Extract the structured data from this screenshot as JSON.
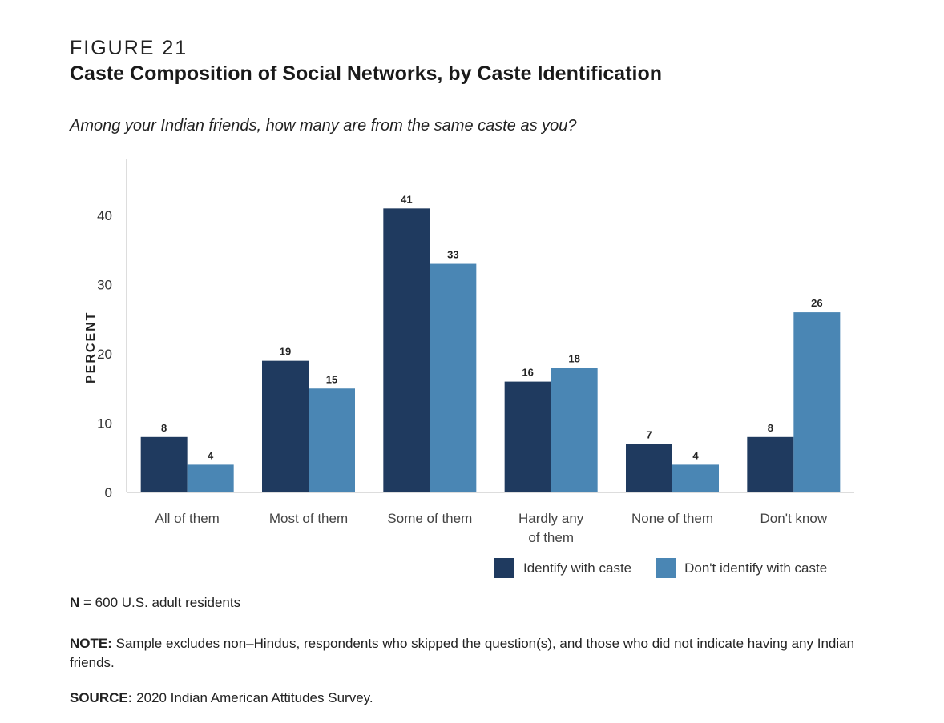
{
  "figure_label": "FIGURE 21",
  "title": "Caste Composition of Social Networks, by Caste Identification",
  "subtitle": "Among your Indian friends, how many are from the same caste as you?",
  "notes": {
    "n_label": "N",
    "n_text": " = 600 U.S. adult residents",
    "note_label": "NOTE:",
    "note_text": " Sample excludes non–Hindus, respondents who skipped the question(s), and those who did not indicate having any Indian friends.",
    "source_label": "SOURCE:",
    "source_text": " 2020 Indian American Attitudes Survey."
  },
  "chart_data": {
    "type": "bar",
    "ylabel": "PERCENT",
    "ylim": [
      0,
      48
    ],
    "yticks": [
      0,
      10,
      20,
      30,
      40
    ],
    "grid": false,
    "legend_position": "bottom-right",
    "categories": [
      [
        "All of them"
      ],
      [
        "Most of them"
      ],
      [
        "Some of them"
      ],
      [
        "Hardly any",
        "of them"
      ],
      [
        "None of them"
      ],
      [
        "Don't know"
      ]
    ],
    "series": [
      {
        "name": "Identify with caste",
        "color": "#1f3a5f",
        "values": [
          8,
          19,
          41,
          16,
          7,
          8
        ]
      },
      {
        "name": "Don't identify with caste",
        "color": "#4a86b4",
        "values": [
          4,
          15,
          33,
          18,
          4,
          26
        ]
      }
    ]
  }
}
